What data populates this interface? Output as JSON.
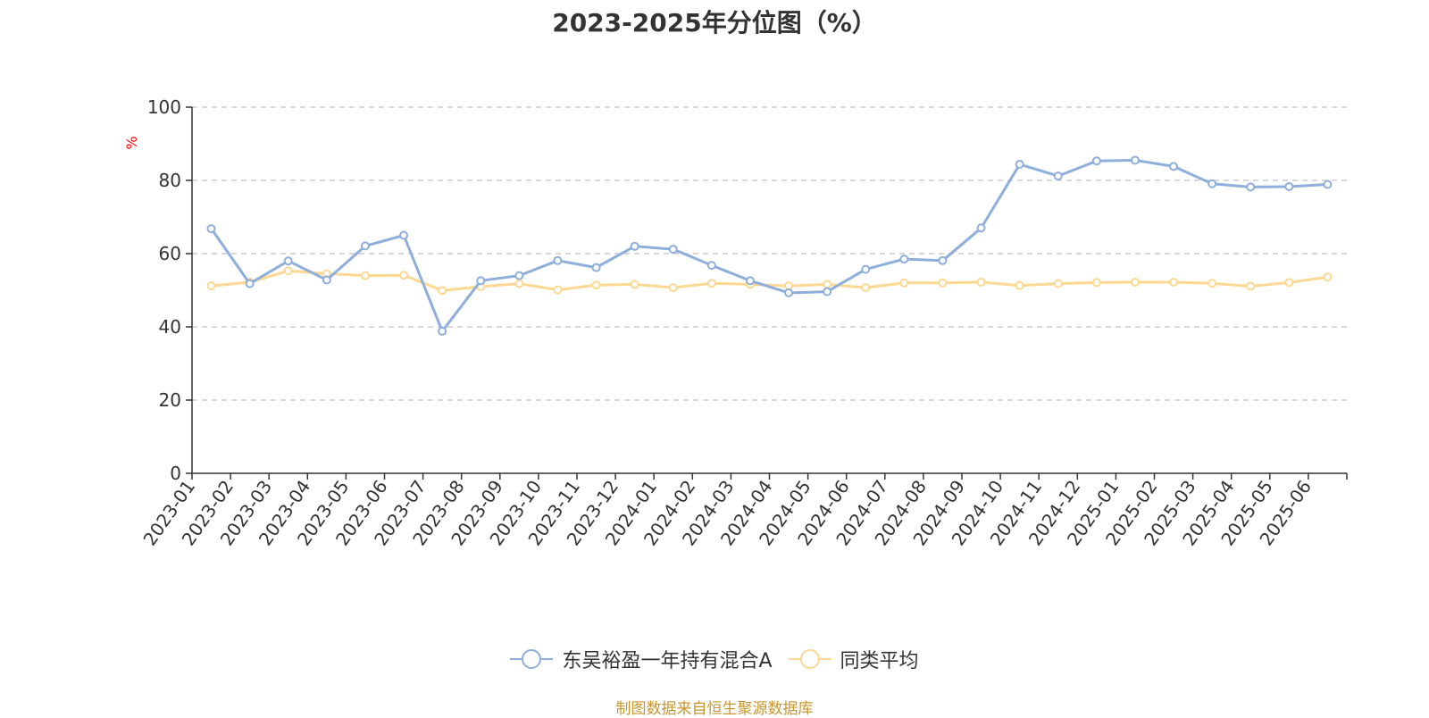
{
  "chart_data": {
    "type": "line",
    "title": "2023-2025年分位图（%）",
    "ylabel": "%",
    "ylim": [
      0,
      100
    ],
    "yticks": [
      0,
      20,
      40,
      60,
      80,
      100
    ],
    "grid": true,
    "legend_position": "bottom",
    "categories": [
      "2023-01",
      "2023-02",
      "2023-03",
      "2023-04",
      "2023-05",
      "2023-06",
      "2023-07",
      "2023-08",
      "2023-09",
      "2023-10",
      "2023-11",
      "2023-12",
      "2024-01",
      "2024-02",
      "2024-03",
      "2024-04",
      "2024-05",
      "2024-06",
      "2024-07",
      "2024-08",
      "2024-09",
      "2024-10",
      "2024-11",
      "2024-12",
      "2025-01",
      "2025-02",
      "2025-03",
      "2025-04",
      "2025-05",
      "2025-06"
    ],
    "series": [
      {
        "name": "东吴裕盈一年持有混合A",
        "color": "#8eaedb",
        "values": [
          66.8,
          51.8,
          58.0,
          52.8,
          62.1,
          65.0,
          38.8,
          52.6,
          54.0,
          58.1,
          56.2,
          62.0,
          61.2,
          56.8,
          52.6,
          49.3,
          49.6,
          55.7,
          58.5,
          58.1,
          67.0,
          84.4,
          81.2,
          85.3,
          85.5,
          83.8,
          79.1,
          78.2,
          78.3,
          78.9
        ]
      },
      {
        "name": "同类平均",
        "color": "#fdd892",
        "values": [
          51.2,
          52.2,
          55.3,
          54.5,
          54.0,
          54.1,
          49.9,
          51.0,
          51.8,
          50.1,
          51.4,
          51.6,
          50.7,
          51.9,
          51.6,
          51.2,
          51.6,
          50.7,
          52.0,
          52.0,
          52.2,
          51.3,
          51.8,
          52.1,
          52.2,
          52.2,
          51.9,
          51.1,
          52.1,
          53.6
        ]
      }
    ]
  },
  "source_note": "制图数据来自恒生聚源数据库",
  "colors": {
    "axis": "#333333",
    "grid": "#cccccc",
    "ylabel": "#ff0000"
  }
}
